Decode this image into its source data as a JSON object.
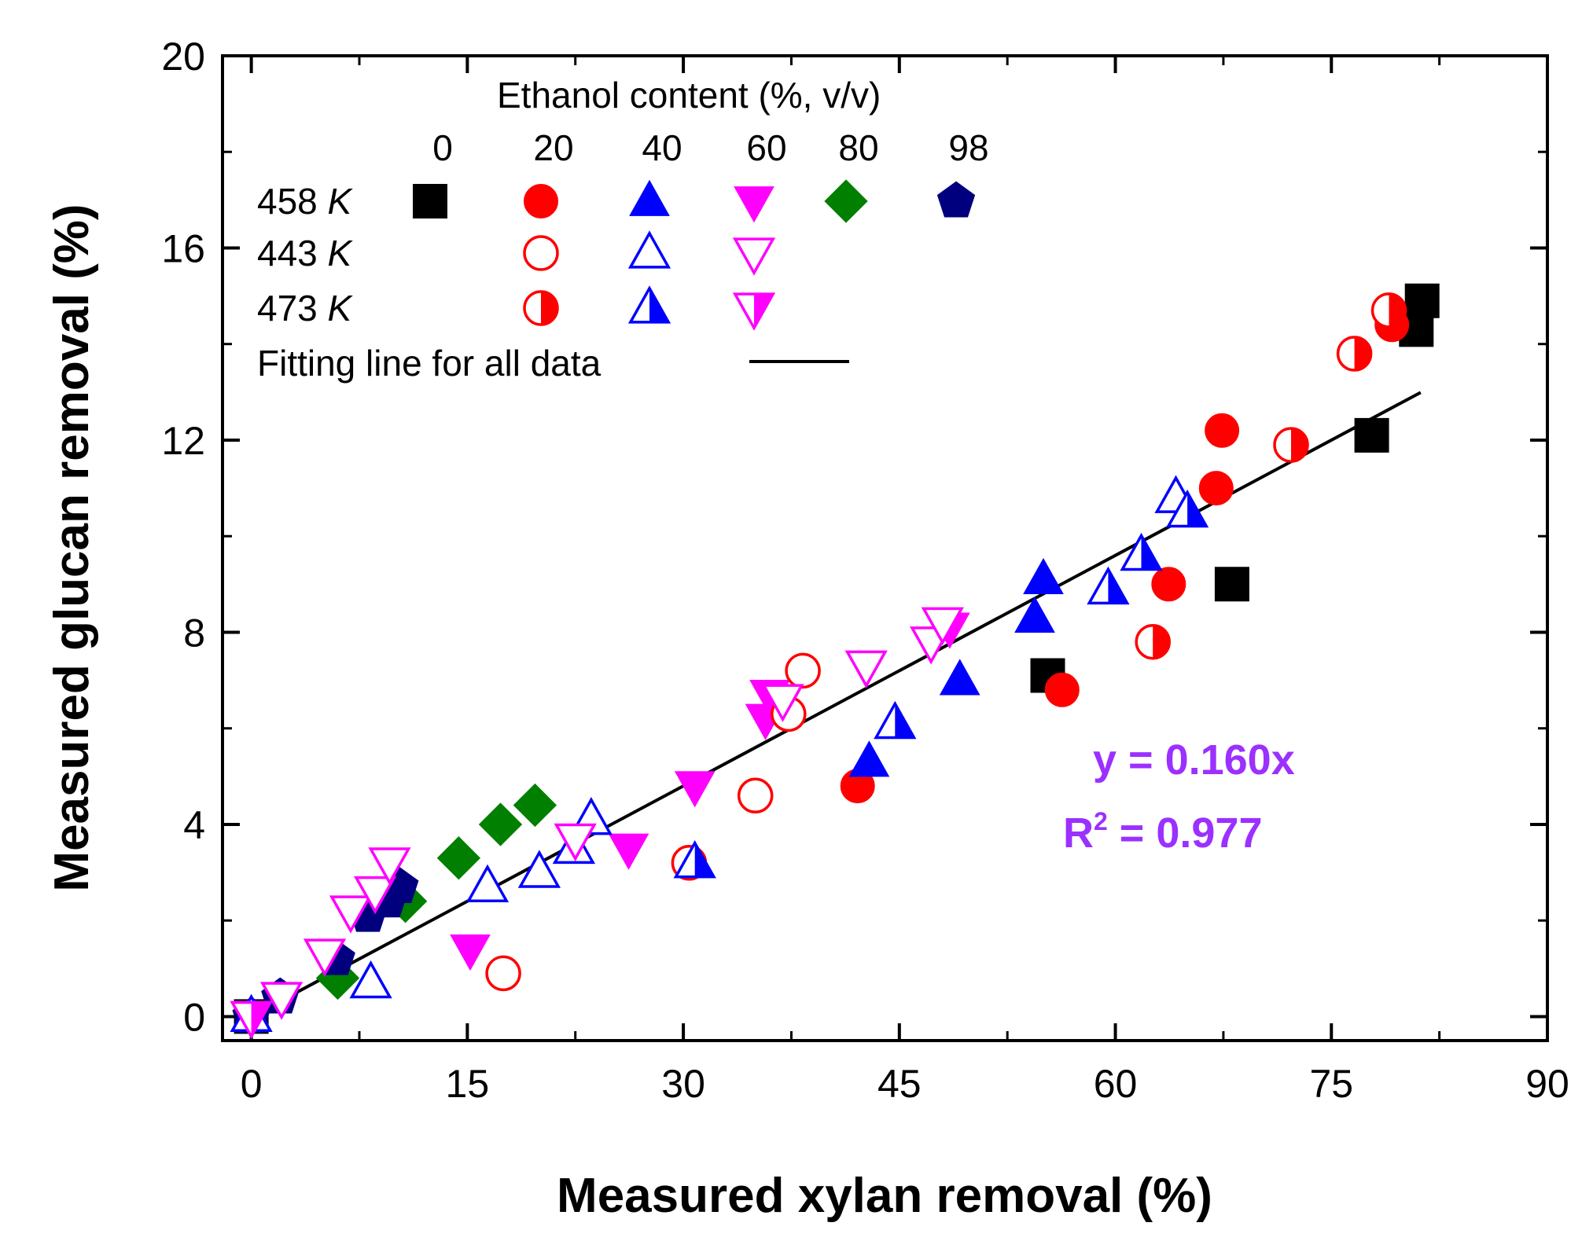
{
  "chart_data": {
    "type": "scatter",
    "xlabel": "Measured xylan removal (%)",
    "ylabel": "Measured glucan removal (%)",
    "xlim": [
      -2,
      90
    ],
    "ylim": [
      -0.5,
      20
    ],
    "xticks": [
      0,
      15,
      30,
      45,
      60,
      75,
      90
    ],
    "yticks": [
      0,
      4,
      8,
      12,
      16,
      20
    ],
    "grid": false,
    "legend": {
      "title": "Ethanol content (%, v/v)",
      "columns": [
        "0",
        "20",
        "40",
        "60",
        "80",
        "98"
      ],
      "rows": [
        {
          "label": "458 ",
          "unit": "K"
        },
        {
          "label": "443 ",
          "unit": "K"
        },
        {
          "label": "473 ",
          "unit": "K"
        }
      ],
      "fit_label": "Fitting line for all data",
      "placement": "top-left"
    },
    "fit": {
      "slope": 0.16,
      "x_range": [
        0,
        81.2
      ],
      "equation": "y = 0.160x",
      "r2_prefix": "R",
      "r2_sup": "2",
      "r2_value": " = 0.977"
    },
    "series": [
      {
        "name": "458 K, 0%",
        "marker": "square",
        "fill": "full",
        "color": "#000000",
        "points": [
          [
            0,
            0
          ],
          [
            55.3,
            7.1
          ],
          [
            68.1,
            9.0
          ],
          [
            77.8,
            12.1
          ],
          [
            80.9,
            14.3
          ],
          [
            81.3,
            14.9
          ]
        ]
      },
      {
        "name": "458 K, 20%",
        "marker": "circle",
        "fill": "full",
        "color": "#ff0000",
        "points": [
          [
            42.1,
            4.8
          ],
          [
            56.3,
            6.8
          ],
          [
            63.7,
            9.0
          ],
          [
            67.0,
            11.0
          ],
          [
            67.4,
            12.2
          ],
          [
            79.2,
            14.4
          ]
        ]
      },
      {
        "name": "458 K, 40%",
        "marker": "triangle-up",
        "fill": "full",
        "color": "#0000ff",
        "points": [
          [
            0,
            0
          ],
          [
            42.9,
            5.3
          ],
          [
            49.2,
            7.0
          ],
          [
            54.4,
            8.3
          ],
          [
            55.0,
            9.1
          ]
        ]
      },
      {
        "name": "458 K, 60%",
        "marker": "triangle-down",
        "fill": "full",
        "color": "#ff00ff",
        "points": [
          [
            15.2,
            1.4
          ],
          [
            26.2,
            3.5
          ],
          [
            30.8,
            4.8
          ],
          [
            35.7,
            6.2
          ],
          [
            36.0,
            6.7
          ],
          [
            48.5,
            8.1
          ]
        ]
      },
      {
        "name": "458 K, 80%",
        "marker": "diamond",
        "fill": "full",
        "color": "#007f00",
        "points": [
          [
            6.0,
            0.8
          ],
          [
            10.7,
            2.4
          ],
          [
            14.4,
            3.3
          ],
          [
            17.3,
            4.0
          ],
          [
            19.7,
            4.4
          ]
        ]
      },
      {
        "name": "458 K, 98%",
        "marker": "pentagon",
        "fill": "full",
        "color": "#00007f",
        "points": [
          [
            0,
            0
          ],
          [
            2.0,
            0.4
          ],
          [
            5.9,
            1.2
          ],
          [
            8.1,
            2.1
          ],
          [
            9.5,
            2.4
          ],
          [
            10.3,
            2.7
          ]
        ]
      },
      {
        "name": "443 K, 20%",
        "marker": "circle",
        "fill": "open",
        "color": "#ff0000",
        "points": [
          [
            17.5,
            0.9
          ],
          [
            30.4,
            3.2
          ],
          [
            35.0,
            4.6
          ],
          [
            37.3,
            6.3
          ],
          [
            38.3,
            7.2
          ]
        ]
      },
      {
        "name": "443 K, 40%",
        "marker": "triangle-up",
        "fill": "open",
        "color": "#0000ff",
        "points": [
          [
            0,
            0
          ],
          [
            8.3,
            0.7
          ],
          [
            16.4,
            2.7
          ],
          [
            20.0,
            3.0
          ],
          [
            22.4,
            3.5
          ],
          [
            23.6,
            4.1
          ],
          [
            64.2,
            10.8
          ]
        ]
      },
      {
        "name": "443 K, 60%",
        "marker": "triangle-down",
        "fill": "open",
        "color": "#ff00ff",
        "points": [
          [
            0,
            0
          ],
          [
            2.1,
            0.4
          ],
          [
            5.1,
            1.3
          ],
          [
            6.9,
            2.2
          ],
          [
            8.6,
            2.6
          ],
          [
            9.6,
            3.2
          ],
          [
            22.5,
            3.7
          ],
          [
            36.9,
            6.6
          ],
          [
            42.7,
            7.3
          ],
          [
            47.2,
            7.8
          ],
          [
            48.0,
            8.2
          ]
        ]
      },
      {
        "name": "473 K, 20%",
        "marker": "circle",
        "fill": "half",
        "color": "#ff0000",
        "points": [
          [
            62.6,
            7.8
          ],
          [
            72.2,
            11.9
          ],
          [
            76.6,
            13.8
          ],
          [
            79.0,
            14.7
          ]
        ]
      },
      {
        "name": "473 K, 40%",
        "marker": "triangle-up",
        "fill": "half",
        "color": "#0000ff",
        "points": [
          [
            30.8,
            3.2
          ],
          [
            44.7,
            6.1
          ],
          [
            59.5,
            8.9
          ],
          [
            61.8,
            9.6
          ],
          [
            65.0,
            10.5
          ]
        ]
      },
      {
        "name": "473 K, 60%",
        "marker": "triangle-down",
        "fill": "half",
        "color": "#ff00ff",
        "points": [
          [
            0,
            0
          ]
        ]
      }
    ]
  }
}
